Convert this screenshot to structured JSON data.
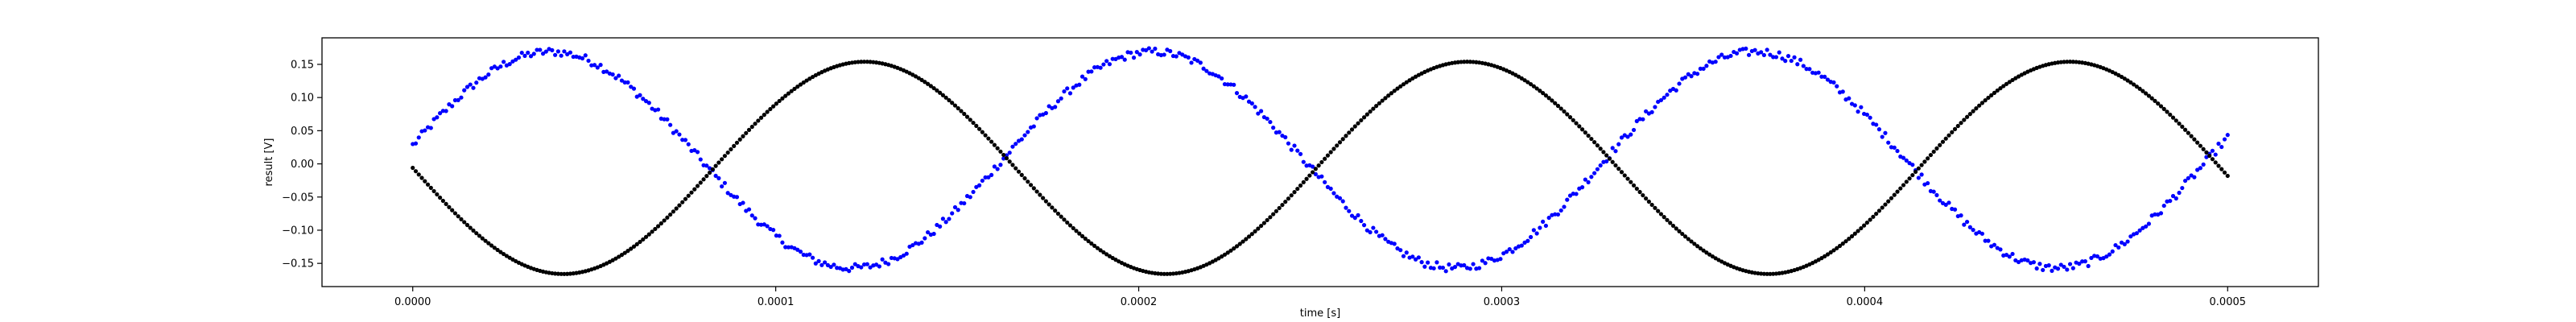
{
  "chart_data": {
    "type": "scatter",
    "title": "",
    "xlabel": "time [s]",
    "ylabel": "result [V]",
    "xlim": [
      -2.5e-05,
      0.000525
    ],
    "ylim": [
      -0.185,
      0.19
    ],
    "xticks": [
      0.0,
      0.0001,
      0.0002,
      0.0003,
      0.0004,
      0.0005
    ],
    "xtick_labels": [
      "0.0000",
      "0.0001",
      "0.0002",
      "0.0003",
      "0.0004",
      "0.0005"
    ],
    "yticks": [
      -0.15,
      -0.1,
      -0.05,
      0.0,
      0.05,
      0.1,
      0.15
    ],
    "ytick_labels": [
      "−0.15",
      "−0.10",
      "−0.05",
      "0.00",
      "0.05",
      "0.10",
      "0.15"
    ],
    "grid": false,
    "legend": "none",
    "series": [
      {
        "color": "#0000ff",
        "marker": "dot",
        "x_range": [
          0.0,
          0.0005
        ],
        "points": 600,
        "pattern": "noisy sinusoid",
        "amplitude": 0.163,
        "offset": 0.006,
        "period": 0.000166,
        "value_at_x0": 0.028,
        "noise_amplitude": 0.006,
        "peaks": [
          [
            4.1e-05,
            0.169
          ],
          [
            0.000207,
            0.169
          ],
          [
            0.000373,
            0.169
          ]
        ],
        "troughs": [
          [
            0.000124,
            -0.157
          ],
          [
            0.00029,
            -0.157
          ],
          [
            0.000456,
            -0.157
          ]
        ]
      },
      {
        "color": "#000000",
        "marker": "dot",
        "x_range": [
          0.0,
          0.0005
        ],
        "points": 600,
        "pattern": "sinusoid",
        "amplitude": 0.16,
        "offset": -0.006,
        "period": 0.000166,
        "value_at_x0": -0.006,
        "peaks": [
          [
            0.000124,
            0.154
          ],
          [
            0.00029,
            0.154
          ],
          [
            0.000456,
            0.154
          ]
        ],
        "troughs": [
          [
            4.1e-05,
            -0.166
          ],
          [
            0.000207,
            -0.166
          ],
          [
            0.000373,
            -0.166
          ]
        ]
      }
    ]
  }
}
